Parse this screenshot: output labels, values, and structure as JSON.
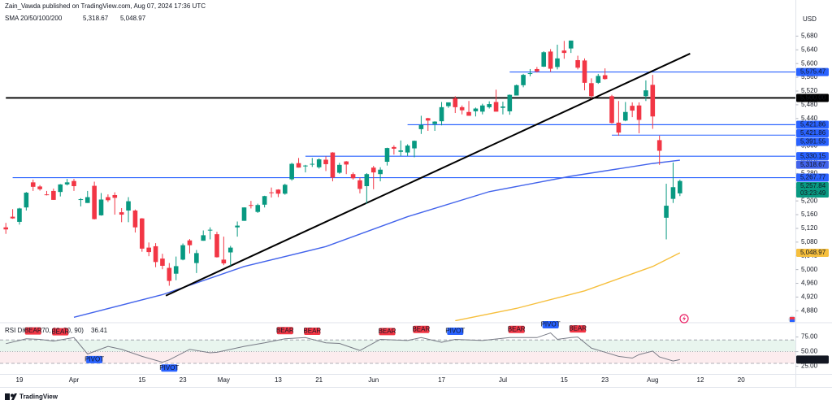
{
  "header": {
    "attribution": "Zain_Vawda published on TradingView.com, Aug 07, 2024 17:36 UTC"
  },
  "watermark": "TradingView",
  "chart_data": [
    {
      "type": "candlestick",
      "categories": [
        null,
        null,
        "19",
        null,
        null,
        null,
        null,
        null,
        null,
        null,
        "Apr",
        null,
        null,
        null,
        null,
        null,
        null,
        null,
        null,
        null,
        "15",
        null,
        null,
        null,
        null,
        null,
        "23",
        null,
        null,
        null,
        null,
        null,
        "May",
        null,
        null,
        null,
        null,
        null,
        null,
        null,
        "13",
        null,
        null,
        null,
        null,
        null,
        "21",
        null,
        null,
        null,
        null,
        null,
        null,
        null,
        "Jun",
        null,
        null,
        null,
        null,
        null,
        null,
        null,
        null,
        null,
        "17",
        null,
        null,
        null,
        null,
        null,
        null,
        null,
        null,
        "Jul",
        null,
        null,
        null,
        null,
        null,
        null,
        null,
        null,
        "15",
        null,
        null,
        null,
        null,
        null,
        "23",
        null,
        null,
        null,
        null,
        null,
        null,
        "Aug",
        null,
        null,
        null,
        null,
        null,
        null,
        "12",
        null,
        null,
        null,
        null,
        null,
        "20"
      ],
      "open": [
        5123,
        5154,
        5139,
        5181,
        5254,
        5242,
        5219,
        5229,
        5226,
        5248,
        5258,
        5204,
        5194,
        5244,
        5158,
        5211,
        5217,
        5167,
        5172,
        5172,
        5149,
        5064,
        5068,
        5032,
        5005,
        4988,
        5029,
        5085,
        5019,
        5084,
        5114,
        5103,
        5029,
        5050,
        5123,
        5142,
        5188,
        5168,
        5189,
        5225,
        5233,
        5221,
        5263,
        5310,
        5303,
        5306,
        5298,
        5320,
        5341,
        5282,
        5315,
        5278,
        5260,
        5243,
        5297,
        5278,
        5314,
        5357,
        5343,
        5341,
        5353,
        5409,
        5441,
        5424,
        5432,
        5476,
        5499,
        5473,
        5459,
        5461,
        5460,
        5473,
        5488,
        5471,
        5461,
        5507,
        5537,
        5572,
        5584,
        5591,
        5635,
        5590,
        5638,
        5644,
        5610,
        5609,
        5543,
        5544,
        5566,
        5505,
        5428,
        5434,
        5477,
        5478,
        5505,
        5538,
        5377,
        5151,
        5206,
        5222,
        null,
        null,
        null,
        null,
        null,
        null,
        null,
        null,
        null
      ],
      "high": [
        5136,
        5176,
        5180,
        5226,
        5262,
        5246,
        5229,
        5236,
        5249,
        5264,
        5264,
        5208,
        5229,
        5256,
        5223,
        5219,
        5225,
        5179,
        5211,
        5175,
        5150,
        5079,
        5077,
        5046,
        5019,
        5038,
        5076,
        5089,
        5057,
        5114,
        5123,
        5110,
        5096,
        5069,
        5140,
        5181,
        5200,
        5192,
        5215,
        5239,
        5234,
        5250,
        5311,
        5325,
        5305,
        5325,
        5324,
        5330,
        5342,
        5311,
        5316,
        5283,
        5268,
        5281,
        5302,
        5298,
        5355,
        5362,
        5376,
        5365,
        5376,
        5448,
        5442,
        5432,
        5488,
        5487,
        5505,
        5478,
        5491,
        5472,
        5483,
        5490,
        5524,
        5489,
        5510,
        5539,
        5570,
        5584,
        5590,
        5636,
        5642,
        5655,
        5666,
        5667,
        5623,
        5615,
        5557,
        5570,
        5586,
        5509,
        5491,
        5488,
        5487,
        5487,
        5551,
        5567,
        5390,
        5250,
        5312,
        5262,
        null,
        null,
        null,
        null,
        null,
        null,
        null,
        null,
        null
      ],
      "low": [
        5104,
        5148,
        5131,
        5172,
        5229,
        5230,
        5216,
        5203,
        5213,
        5245,
        5229,
        5184,
        5194,
        5146,
        5157,
        5197,
        5160,
        5138,
        5138,
        5108,
        5052,
        5039,
        5007,
        5001,
        4953,
        4969,
        5027,
        5047,
        4990,
        5084,
        5088,
        5035,
        5013,
        5011,
        5096,
        5142,
        5178,
        5165,
        5181,
        5210,
        5211,
        5218,
        5259,
        5297,
        5283,
        5299,
        5294,
        5287,
        5257,
        5279,
        5278,
        5262,
        5222,
        5192,
        5234,
        5257,
        5303,
        5335,
        5331,
        5331,
        5327,
        5395,
        5404,
        5404,
        5420,
        5471,
        5456,
        5452,
        5448,
        5446,
        5452,
        5469,
        5460,
        5452,
        5451,
        5507,
        5531,
        5563,
        5574,
        5590,
        5576,
        5583,
        5614,
        5631,
        5583,
        5522,
        5498,
        5541,
        5553,
        5425,
        5390,
        5432,
        5444,
        5397,
        5491,
        5410,
        5305,
        5088,
        5194,
        5214,
        null,
        null,
        null,
        null,
        null,
        null,
        null,
        null,
        null
      ],
      "close": [
        5117,
        5149,
        5178,
        5224,
        5241,
        5234,
        5218,
        5203,
        5248,
        5254,
        5243,
        5205,
        5211,
        5147,
        5204,
        5202,
        5209,
        5160,
        5199,
        5123,
        5061,
        5051,
        5022,
        5011,
        4967,
        5010,
        5071,
        5071,
        5048,
        5100,
        5116,
        5036,
        5018,
        5064,
        5128,
        5181,
        5187,
        5188,
        5214,
        5223,
        5221,
        5247,
        5308,
        5297,
        5303,
        5308,
        5321,
        5307,
        5268,
        5305,
        5306,
        5266,
        5235,
        5278,
        5283,
        5291,
        5354,
        5352,
        5347,
        5361,
        5375,
        5421,
        5434,
        5431,
        5473,
        5487,
        5473,
        5464,
        5448,
        5469,
        5478,
        5482,
        5460,
        5475,
        5509,
        5537,
        5567,
        5572,
        5577,
        5633,
        5585,
        5615,
        5631,
        5667,
        5588,
        5544,
        5505,
        5564,
        5555,
        5427,
        5399,
        5459,
        5463,
        5436,
        5522,
        5446,
        5346,
        5186,
        5240,
        5258,
        null,
        null,
        null,
        null,
        null,
        null,
        null,
        null,
        null
      ],
      "up_color": "#089981",
      "down_color": "#f23645",
      "currency": "USD",
      "ylim": [
        4850,
        5752
      ],
      "yticks": [
        {
          "value": 4880,
          "label": "4,880"
        },
        {
          "value": 4920,
          "label": "4,920"
        },
        {
          "value": 4960,
          "label": "4,960"
        },
        {
          "value": 5000,
          "label": "5,000"
        },
        {
          "value": 5040,
          "label": "5,040"
        },
        {
          "value": 5080,
          "label": "5,080"
        },
        {
          "value": 5120,
          "label": "5,120"
        },
        {
          "value": 5160,
          "label": "5,160"
        },
        {
          "value": 5200,
          "label": "5,200"
        },
        {
          "value": 5240,
          "label": "5,240"
        },
        {
          "value": 5280,
          "label": "5,280"
        },
        {
          "value": 5320,
          "label": "5,320"
        },
        {
          "value": 5360,
          "label": "5,360"
        },
        {
          "value": 5400,
          "label": "5,400"
        },
        {
          "value": 5440,
          "label": "5,440"
        },
        {
          "value": 5480,
          "label": "5,480"
        },
        {
          "value": 5520,
          "label": "5,520"
        },
        {
          "value": 5560,
          "label": "5,560"
        },
        {
          "value": 5600,
          "label": "5,600"
        },
        {
          "value": 5640,
          "label": "5,640"
        },
        {
          "value": 5680,
          "label": "5,680"
        }
      ],
      "grid": false,
      "last_price": {
        "value": 5257.84,
        "label": "5,257.84",
        "countdown": "03:23:49"
      },
      "indicator": {
        "name": "SMA 20/50/100/200",
        "lines": [
          {
            "color": "#4263eb",
            "x": [
              10,
              23,
              35,
              47,
              59,
              71,
              83,
              95,
              99
            ],
            "values": [
              4861,
              4927,
              5009,
              5067,
              5154,
              5227,
              5272,
              5309,
              5318.67
            ],
            "last_label": "5,318.67"
          },
          {
            "color": "#f6bf3d",
            "x": [
              66,
              75,
              85,
              95,
              99
            ],
            "values": [
              4851,
              4887,
              4938,
              5009,
              5048.97
            ],
            "last_label": "5,048.97"
          }
        ]
      },
      "levels": [
        {
          "value": 5575.47,
          "label": "5,575.47",
          "start": 74,
          "color": "#2962ff"
        },
        {
          "value": 5500,
          "label": "5,500.00",
          "start": 0,
          "color": "#000000",
          "weight": "thick"
        },
        {
          "value": 5421.86,
          "label": "5,421.86",
          "start": 61,
          "color": "#2962ff"
        },
        {
          "value": 5421.86,
          "label": "5,421.86",
          "start": 59,
          "color": "#2962ff"
        },
        {
          "value": 5391.55,
          "label": "5,391.55",
          "start": 89,
          "color": "#2962ff"
        },
        {
          "value": 5330.15,
          "label": "5,330.15",
          "start": 44,
          "color": "#2962ff"
        },
        {
          "value": 5267.77,
          "label": "5,267.77",
          "start": 1,
          "color": "#2962ff"
        }
      ],
      "trendline": {
        "x": [
          23.5,
          100.5
        ],
        "values": [
          4924,
          5629
        ],
        "color": "#000000"
      }
    },
    {
      "type": "line",
      "title": "RSI Div (14, 70, 30, 50, 90)",
      "color": "#787b86",
      "x": [
        0,
        3,
        5,
        7,
        10,
        12,
        15,
        17,
        20,
        23,
        24,
        27,
        30,
        31,
        35,
        38,
        41,
        44,
        47,
        49,
        52,
        55,
        59,
        61,
        64,
        66,
        70,
        74,
        78,
        80,
        81,
        83,
        84,
        86,
        88,
        90,
        92,
        93,
        95,
        96,
        98,
        99
      ],
      "values": [
        63.6,
        72,
        71,
        68,
        74,
        46,
        59,
        54,
        42,
        32,
        36,
        54,
        48,
        49,
        59,
        65,
        72,
        74,
        65,
        64,
        52,
        71,
        69,
        74,
        66,
        71,
        69,
        74,
        74,
        82,
        71,
        74,
        75,
        56,
        49,
        42,
        39,
        45,
        51,
        41,
        34,
        36.41
      ],
      "last_label": "36.41",
      "ylim": [
        12,
        98
      ],
      "yticks": [
        {
          "value": 75,
          "label": "75.00"
        },
        {
          "value": 50,
          "label": "50.00"
        },
        {
          "value": 25,
          "label": "25.00"
        }
      ],
      "levels": [
        70,
        50,
        30
      ],
      "band_colors": [
        "#e8f5ee",
        "#fcecee"
      ],
      "signal_colors": {
        "BEAR": "#f23645",
        "PIVOT": "#2962ff"
      },
      "signals": [
        {
          "x": 4,
          "label": "BEAR",
          "placement": "above"
        },
        {
          "x": 8,
          "label": "BEAR",
          "placement": "above"
        },
        {
          "x": 13,
          "label": "PIVOT",
          "placement": "below"
        },
        {
          "x": 24,
          "label": "PIVOT",
          "placement": "below"
        },
        {
          "x": 41,
          "label": "BEAR",
          "placement": "above"
        },
        {
          "x": 45,
          "label": "BEAR",
          "placement": "above"
        },
        {
          "x": 56,
          "label": "BEAR",
          "placement": "above"
        },
        {
          "x": 61,
          "label": "BEAR",
          "placement": "above"
        },
        {
          "x": 66,
          "label": "PIVOT",
          "placement": "above"
        },
        {
          "x": 75,
          "label": "BEAR",
          "placement": "above"
        },
        {
          "x": 80,
          "label": "PIVOT",
          "placement": "above"
        },
        {
          "x": 84,
          "label": "BEAR",
          "placement": "above"
        }
      ]
    }
  ]
}
